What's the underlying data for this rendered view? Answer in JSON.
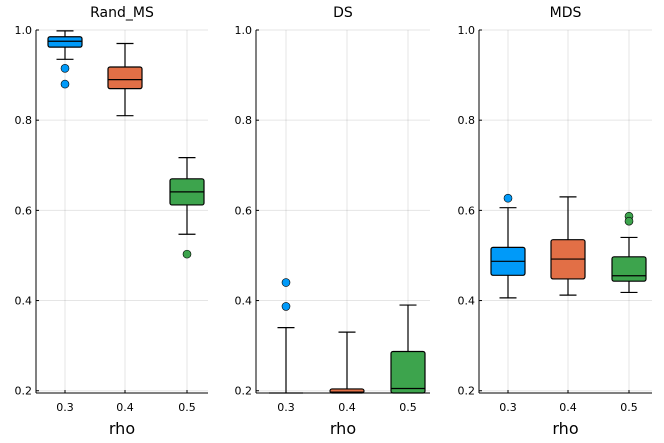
{
  "chart_data": [
    {
      "type": "boxplot",
      "title": "Rand_MS",
      "xlabel": "rho",
      "ylabel": "",
      "ylim": [
        0.195,
        1.0
      ],
      "yticks": [
        "0.2",
        "0.4",
        "0.6",
        "0.8",
        "1.0"
      ],
      "categories": [
        "0.3",
        "0.4",
        "0.5"
      ],
      "boxes": [
        {
          "category": "0.3",
          "color": "#009af9",
          "whisker_low": 0.935,
          "q1": 0.962,
          "median": 0.975,
          "q3": 0.985,
          "whisker_high": 0.998,
          "outliers": [
            0.915,
            0.88
          ]
        },
        {
          "category": "0.4",
          "color": "#e26f46",
          "whisker_low": 0.81,
          "q1": 0.87,
          "median": 0.89,
          "q3": 0.918,
          "whisker_high": 0.97,
          "outliers": []
        },
        {
          "category": "0.5",
          "color": "#3da44d",
          "whisker_low": 0.547,
          "q1": 0.612,
          "median": 0.641,
          "q3": 0.67,
          "whisker_high": 0.717,
          "outliers": [
            0.503
          ]
        }
      ]
    },
    {
      "type": "boxplot",
      "title": "DS",
      "xlabel": "rho",
      "ylabel": "",
      "ylim": [
        0.195,
        1.0
      ],
      "yticks": [
        "0.2",
        "0.4",
        "0.6",
        "0.8",
        "1.0"
      ],
      "categories": [
        "0.3",
        "0.4",
        "0.5"
      ],
      "boxes": [
        {
          "category": "0.3",
          "color": "#009af9",
          "whisker_low": 0.195,
          "q1": 0.195,
          "median": 0.195,
          "q3": 0.195,
          "whisker_high": 0.34,
          "outliers": [
            0.44,
            0.387
          ]
        },
        {
          "category": "0.4",
          "color": "#e26f46",
          "whisker_low": 0.195,
          "q1": 0.195,
          "median": 0.197,
          "q3": 0.204,
          "whisker_high": 0.33,
          "outliers": []
        },
        {
          "category": "0.5",
          "color": "#3da44d",
          "whisker_low": 0.195,
          "q1": 0.195,
          "median": 0.205,
          "q3": 0.287,
          "whisker_high": 0.39,
          "outliers": []
        }
      ]
    },
    {
      "type": "boxplot",
      "title": "MDS",
      "xlabel": "rho",
      "ylabel": "",
      "ylim": [
        0.195,
        1.0
      ],
      "yticks": [
        "0.2",
        "0.4",
        "0.6",
        "0.8",
        "1.0"
      ],
      "categories": [
        "0.3",
        "0.4",
        "0.5"
      ],
      "boxes": [
        {
          "category": "0.3",
          "color": "#009af9",
          "whisker_low": 0.406,
          "q1": 0.456,
          "median": 0.487,
          "q3": 0.518,
          "whisker_high": 0.606,
          "outliers": [
            0.627
          ]
        },
        {
          "category": "0.4",
          "color": "#e26f46",
          "whisker_low": 0.412,
          "q1": 0.448,
          "median": 0.492,
          "q3": 0.535,
          "whisker_high": 0.63,
          "outliers": []
        },
        {
          "category": "0.5",
          "color": "#3da44d",
          "whisker_low": 0.418,
          "q1": 0.443,
          "median": 0.455,
          "q3": 0.497,
          "whisker_high": 0.54,
          "outliers": [
            0.587,
            0.576
          ]
        }
      ]
    }
  ]
}
